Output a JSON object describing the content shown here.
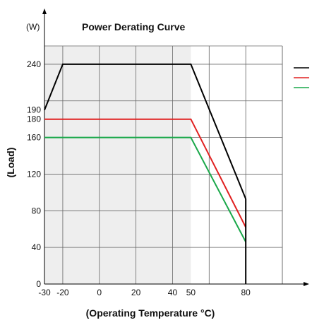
{
  "chart_data": {
    "type": "line",
    "title": "Power Derating Curve",
    "y_unit": "(W)",
    "xlabel": "(Operating Temperature °C)",
    "ylabel": "(Load)",
    "xlim": [
      -30,
      100
    ],
    "ylim": [
      0,
      260
    ],
    "x_ticks": [
      {
        "v": -30,
        "label": "-30"
      },
      {
        "v": -20,
        "label": "-20"
      },
      {
        "v": 0,
        "label": "0"
      },
      {
        "v": 20,
        "label": "20"
      },
      {
        "v": 40,
        "label": "40"
      },
      {
        "v": 50,
        "label": "50"
      },
      {
        "v": 80,
        "label": "80"
      }
    ],
    "y_ticks": [
      {
        "v": 0,
        "label": "0"
      },
      {
        "v": 40,
        "label": "40"
      },
      {
        "v": 80,
        "label": "80"
      },
      {
        "v": 120,
        "label": "120"
      },
      {
        "v": 160,
        "label": "160"
      },
      {
        "v": 180,
        "label": "180"
      },
      {
        "v": 190,
        "label": "190"
      },
      {
        "v": 240,
        "label": "240"
      }
    ],
    "grid": true,
    "legend": "right",
    "shaded_region": {
      "x": [
        -30,
        50
      ],
      "color": "#eeeeee"
    },
    "cutoff_line": {
      "x": 80,
      "y": [
        0,
        93
      ]
    },
    "series": [
      {
        "color": "#000000",
        "x": [
          -30,
          -20,
          50,
          80
        ],
        "y": [
          190,
          240,
          240,
          93
        ]
      },
      {
        "color": "#e02020",
        "x": [
          -30,
          50,
          80
        ],
        "y": [
          180,
          180,
          62
        ]
      },
      {
        "color": "#1aa84a",
        "x": [
          -30,
          50,
          80
        ],
        "y": [
          160,
          160,
          46
        ]
      }
    ]
  }
}
